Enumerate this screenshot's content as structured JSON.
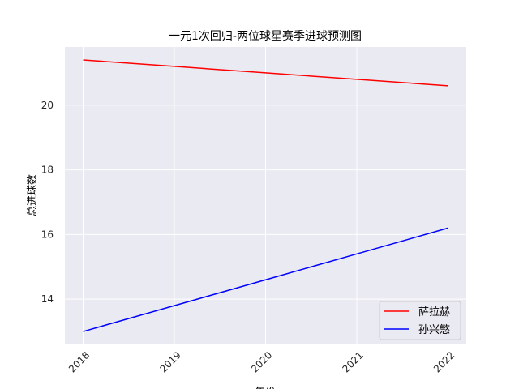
{
  "chart_data": {
    "type": "line",
    "title": "一元1次回归-两位球星赛季进球预测图",
    "xlabel": "年份",
    "ylabel": "总进球数",
    "x": [
      2018,
      2019,
      2020,
      2021,
      2022
    ],
    "x_tick_labels": [
      "2018",
      "2019",
      "2020",
      "2021",
      "2022"
    ],
    "y_ticks": [
      14,
      16,
      18,
      20
    ],
    "y_tick_labels": [
      "14",
      "16",
      "18",
      "20"
    ],
    "xlim": [
      2017.8,
      2022.2
    ],
    "ylim": [
      12.6,
      21.8
    ],
    "grid": true,
    "legend_position": "lower-right",
    "series": [
      {
        "name": "萨拉赫",
        "color": "#ff0000",
        "values": [
          21.4,
          21.2,
          21.0,
          20.8,
          20.6
        ]
      },
      {
        "name": "孙兴慜",
        "color": "#0000ff",
        "values": [
          13.0,
          13.8,
          14.6,
          15.4,
          16.2
        ]
      }
    ]
  },
  "colors": {
    "plot_background": "#eaeaf2",
    "grid": "#ffffff"
  }
}
